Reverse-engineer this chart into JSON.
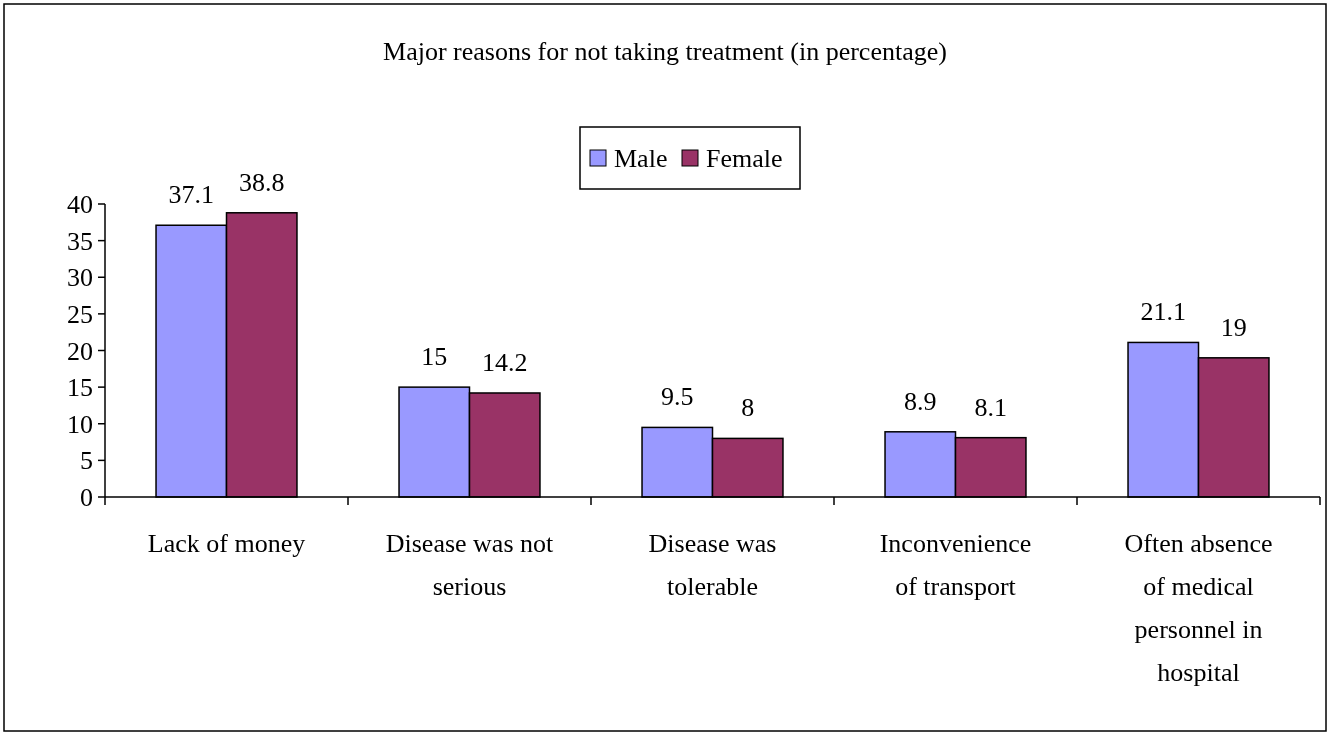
{
  "chart_data": {
    "type": "bar",
    "title": "Major reasons for not taking treatment (in percentage)",
    "categories": [
      "Lack of money",
      "Disease was not serious",
      "Disease was tolerable",
      "Inconvenience of transport",
      "Often absence of medical personnel in hospital"
    ],
    "series": [
      {
        "name": "Male",
        "color": "#9999ff",
        "values": [
          37.1,
          15,
          9.5,
          8.9,
          21.1
        ]
      },
      {
        "name": "Female",
        "color": "#993366",
        "values": [
          38.8,
          14.2,
          8,
          8.1,
          19
        ]
      }
    ],
    "ylim": [
      0,
      40
    ],
    "yticks": [
      0,
      5,
      10,
      15,
      20,
      25,
      30,
      35,
      40
    ],
    "grid": false,
    "legend": "top",
    "data_labels": true
  }
}
